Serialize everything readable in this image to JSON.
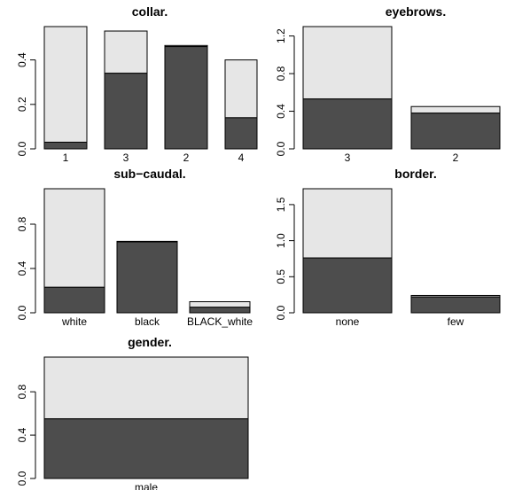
{
  "colors": {
    "dark_segment": "#4d4d4d",
    "light_segment": "#e6e6e6",
    "stroke": "#000000",
    "background": "#ffffff"
  },
  "chart_data": [
    {
      "id": "collar",
      "type": "bar",
      "stacked": true,
      "title": "collar.",
      "categories": [
        "1",
        "3",
        "2",
        "4"
      ],
      "series": [
        {
          "values": [
            0.03,
            0.34,
            0.46,
            0.14
          ]
        },
        {
          "values": [
            0.52,
            0.19,
            0.005,
            0.26
          ]
        }
      ],
      "ylim": [
        0,
        0.55
      ],
      "yticks": [
        "0.0",
        "0.2",
        "0.4"
      ],
      "ytick_values": [
        0,
        0.2,
        0.4
      ],
      "xlabel": "",
      "ylabel": ""
    },
    {
      "id": "eyebrows",
      "type": "bar",
      "stacked": true,
      "title": "eyebrows.",
      "categories": [
        "3",
        "2"
      ],
      "series": [
        {
          "values": [
            0.53,
            0.38
          ]
        },
        {
          "values": [
            0.77,
            0.07
          ]
        }
      ],
      "ylim": [
        0,
        1.3
      ],
      "yticks": [
        "0.0",
        "0.4",
        "0.8",
        "1.2"
      ],
      "ytick_values": [
        0,
        0.4,
        0.8,
        1.2
      ],
      "xlabel": "",
      "ylabel": ""
    },
    {
      "id": "subcaudal",
      "type": "bar",
      "stacked": true,
      "title": "sub−caudal.",
      "categories": [
        "white",
        "black",
        "BLACK_white"
      ],
      "series": [
        {
          "values": [
            0.23,
            0.64,
            0.05
          ]
        },
        {
          "values": [
            0.89,
            0.005,
            0.05
          ]
        }
      ],
      "ylim": [
        0,
        1.12
      ],
      "yticks": [
        "0.0",
        "0.4",
        "0.8"
      ],
      "ytick_values": [
        0,
        0.4,
        0.8
      ],
      "xlabel": "",
      "ylabel": ""
    },
    {
      "id": "border",
      "type": "bar",
      "stacked": true,
      "title": "border.",
      "categories": [
        "none",
        "few"
      ],
      "series": [
        {
          "values": [
            0.76,
            0.22
          ]
        },
        {
          "values": [
            0.96,
            0.02
          ]
        }
      ],
      "ylim": [
        0,
        1.72
      ],
      "yticks": [
        "0.0",
        "0.5",
        "1.0",
        "1.5"
      ],
      "ytick_values": [
        0,
        0.5,
        1.0,
        1.5
      ],
      "xlabel": "",
      "ylabel": ""
    },
    {
      "id": "gender",
      "type": "bar",
      "stacked": true,
      "title": "gender.",
      "categories": [
        "male"
      ],
      "series": [
        {
          "values": [
            0.55
          ]
        },
        {
          "values": [
            0.57
          ]
        }
      ],
      "ylim": [
        0,
        1.12
      ],
      "yticks": [
        "0.0",
        "0.4",
        "0.8"
      ],
      "ytick_values": [
        0,
        0.4,
        0.8
      ],
      "xlabel": "",
      "ylabel": ""
    }
  ]
}
